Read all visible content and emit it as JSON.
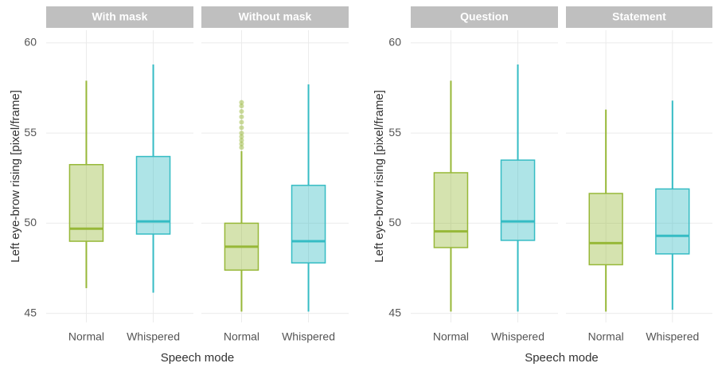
{
  "chart_data": [
    {
      "type": "box",
      "ylabel": "Left eye-brow rising [pixel/frame]",
      "xlabel": "Speech mode",
      "ylim": [
        44.5,
        60.7
      ],
      "yticks": [
        45,
        50,
        55,
        60
      ],
      "grid": true,
      "facets": [
        {
          "title": "With mask",
          "categories": [
            "Normal",
            "Whispered"
          ],
          "boxes": [
            {
              "color": "#97b838",
              "whisker_low": 46.4,
              "q1": 49.0,
              "median": 49.7,
              "q3": 53.25,
              "whisker_high": 57.9
            },
            {
              "color": "#35bcc4",
              "whisker_low": 46.15,
              "q1": 49.4,
              "median": 50.1,
              "q3": 53.7,
              "whisker_high": 58.8
            }
          ]
        },
        {
          "title": "Without mask",
          "categories": [
            "Normal",
            "Whispered"
          ],
          "boxes": [
            {
              "color": "#97b838",
              "whisker_low": 45.1,
              "q1": 47.4,
              "median": 48.7,
              "q3": 50.0,
              "whisker_high": 54.0,
              "outliers": [
                54.2,
                54.4,
                54.6,
                54.8,
                55.0,
                55.3,
                55.6,
                55.9,
                56.2,
                56.5,
                56.7
              ]
            },
            {
              "color": "#35bcc4",
              "whisker_low": 45.1,
              "q1": 47.8,
              "median": 49.0,
              "q3": 52.1,
              "whisker_high": 57.7
            }
          ]
        }
      ]
    },
    {
      "type": "box",
      "ylabel": "Left eye-brow rising [pixel/frame]",
      "xlabel": "Speech mode",
      "ylim": [
        44.5,
        60.7
      ],
      "yticks": [
        45,
        50,
        55,
        60
      ],
      "grid": true,
      "facets": [
        {
          "title": "Question",
          "categories": [
            "Normal",
            "Whispered"
          ],
          "boxes": [
            {
              "color": "#97b838",
              "whisker_low": 45.1,
              "q1": 48.65,
              "median": 49.55,
              "q3": 52.8,
              "whisker_high": 57.9
            },
            {
              "color": "#35bcc4",
              "whisker_low": 45.1,
              "q1": 49.05,
              "median": 50.1,
              "q3": 53.5,
              "whisker_high": 58.8
            }
          ]
        },
        {
          "title": "Statement",
          "categories": [
            "Normal",
            "Whispered"
          ],
          "boxes": [
            {
              "color": "#97b838",
              "whisker_low": 45.1,
              "q1": 47.7,
              "median": 48.9,
              "q3": 51.65,
              "whisker_high": 56.3
            },
            {
              "color": "#35bcc4",
              "whisker_low": 45.2,
              "q1": 48.3,
              "median": 49.3,
              "q3": 51.9,
              "whisker_high": 56.8
            }
          ]
        }
      ]
    }
  ]
}
